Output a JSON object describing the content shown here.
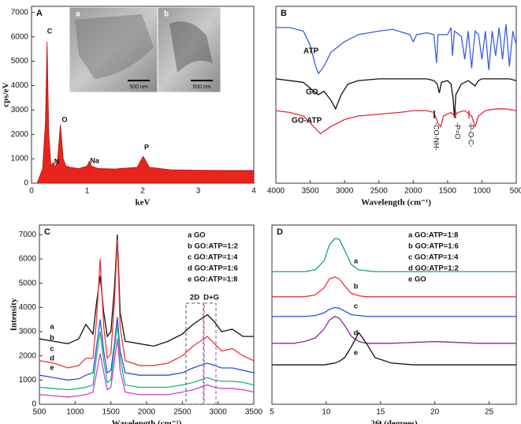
{
  "chart_data": [
    {
      "type": "area",
      "title": "A",
      "xlabel": "keV",
      "ylabel": "cps/eV",
      "color": "#e8251c",
      "x": [
        0,
        0.1,
        0.2,
        0.25,
        0.28,
        0.31,
        0.35,
        0.39,
        0.43,
        0.47,
        0.52,
        0.57,
        0.62,
        0.7,
        0.85,
        1.0,
        1.04,
        1.08,
        1.2,
        1.5,
        1.9,
        1.96,
        2.01,
        2.06,
        2.12,
        2.5,
        3,
        3.5,
        4
      ],
      "values": [
        0,
        0,
        600,
        2500,
        5800,
        2000,
        700,
        850,
        650,
        1000,
        2400,
        1000,
        700,
        650,
        600,
        700,
        900,
        700,
        600,
        580,
        650,
        900,
        1100,
        900,
        650,
        550,
        530,
        520,
        520
      ],
      "xlim": [
        0,
        4
      ],
      "xticks": [
        0,
        1,
        2,
        3,
        4
      ],
      "ylim": [
        0,
        7250
      ],
      "yticks": [
        0,
        1000,
        2000,
        3000,
        4000,
        5000,
        6000,
        7000
      ],
      "peak_labels": [
        "C",
        "N",
        "O",
        "Na",
        "P"
      ],
      "insets": [
        {
          "label": "a",
          "scale_bar": "500 nm"
        },
        {
          "label": "b",
          "scale_bar": "500 nm"
        }
      ]
    },
    {
      "type": "line",
      "title": "B",
      "xlabel": "Wavelength (cm⁻¹)",
      "xlim": [
        4000,
        500
      ],
      "xticks": [
        4000,
        3500,
        3000,
        2500,
        2000,
        1500,
        1000,
        500
      ],
      "ylim": [
        0,
        100
      ],
      "annotations": [
        "-CO-NH-",
        "-P=O",
        "-P-O-C-"
      ],
      "series": [
        {
          "name": "ATP",
          "color": "#3b5fe0",
          "x": [
            4000,
            3800,
            3600,
            3500,
            3420,
            3380,
            3300,
            3200,
            3000,
            2800,
            2500,
            2300,
            2050,
            2000,
            1950,
            1800,
            1700,
            1660,
            1640,
            1500,
            1450,
            1430,
            1400,
            1300,
            1250,
            1200,
            1150,
            1100,
            1050,
            1000,
            950,
            900,
            850,
            800,
            750,
            700,
            650,
            600,
            550,
            500
          ],
          "values": [
            88,
            88,
            86,
            78,
            66,
            62,
            66,
            74,
            80,
            84,
            86,
            87,
            84,
            80,
            84,
            85,
            84,
            68,
            84,
            84,
            88,
            72,
            86,
            83,
            70,
            86,
            65,
            86,
            84,
            70,
            86,
            64,
            86,
            72,
            88,
            70,
            90,
            66,
            86,
            78
          ]
        },
        {
          "name": "GO",
          "color": "#111111",
          "x": [
            4000,
            3800,
            3600,
            3450,
            3380,
            3300,
            3200,
            3130,
            3050,
            2950,
            2800,
            2500,
            2200,
            2000,
            1800,
            1700,
            1650,
            1620,
            1590,
            1500,
            1450,
            1420,
            1400,
            1380,
            1300,
            1200,
            1100,
            1050,
            1000,
            800,
            600,
            500
          ],
          "values": [
            59,
            58,
            57,
            52,
            50,
            52,
            47,
            42,
            50,
            56,
            58,
            59,
            59,
            59,
            59,
            58,
            56,
            51,
            57,
            58,
            56,
            48,
            37,
            50,
            56,
            58,
            55,
            58,
            59,
            59,
            59,
            58
          ]
        },
        {
          "name": "GO-ATP",
          "color": "#e8253a",
          "x": [
            4000,
            3800,
            3600,
            3450,
            3350,
            3200,
            3000,
            2800,
            2500,
            2200,
            2000,
            1800,
            1700,
            1640,
            1600,
            1560,
            1450,
            1400,
            1350,
            1250,
            1150,
            1100,
            1050,
            950,
            800,
            650,
            500
          ],
          "values": [
            41,
            40,
            38,
            32,
            28,
            32,
            36,
            38,
            39,
            40,
            41,
            41,
            40,
            34,
            32,
            38,
            40,
            38,
            40,
            41,
            38,
            32,
            38,
            41,
            42,
            42,
            41
          ]
        }
      ]
    },
    {
      "type": "line",
      "title": "C",
      "xlabel": "Wavelength (cm⁻¹)",
      "ylabel": "Intensity",
      "legend": "upper right",
      "x": [
        500,
        700,
        900,
        1050,
        1150,
        1250,
        1300,
        1350,
        1400,
        1450,
        1500,
        1550,
        1590,
        1630,
        1700,
        1900,
        2100,
        2300,
        2500,
        2650,
        2750,
        2850,
        2950,
        3050,
        3200,
        3350,
        3500
      ],
      "xlim": [
        500,
        3500
      ],
      "xticks": [
        500,
        1000,
        1500,
        2000,
        2500,
        3000,
        3500
      ],
      "ylim": [
        0,
        7400
      ],
      "yticks": [
        0,
        1000,
        2000,
        3000,
        4000,
        5000,
        6000,
        7000
      ],
      "annotations": [
        "2D",
        "D+G"
      ],
      "series": [
        {
          "name": "a GO",
          "tag": "a",
          "color": "#111111",
          "values": [
            2700,
            2600,
            2500,
            2700,
            3300,
            2900,
            4200,
            5300,
            3800,
            2800,
            3000,
            4800,
            7000,
            3800,
            2600,
            2500,
            2400,
            2600,
            2900,
            3300,
            3500,
            3700,
            3400,
            3000,
            3100,
            2800,
            2800
          ]
        },
        {
          "name": "b GO:ATP=1:2",
          "tag": "b",
          "color": "#f0333a",
          "values": [
            1800,
            1700,
            1500,
            1600,
            1900,
            1900,
            3500,
            6000,
            3200,
            1900,
            2100,
            4200,
            6800,
            3200,
            1800,
            1600,
            1600,
            1700,
            2000,
            2400,
            2600,
            2800,
            2500,
            2200,
            2300,
            2000,
            1800
          ]
        },
        {
          "name": "c GO:ATP=1:4",
          "tag": "c",
          "color": "#2f4fe0",
          "values": [
            1200,
            1100,
            1000,
            1050,
            1200,
            1300,
            2400,
            3500,
            2200,
            1300,
            1400,
            2500,
            3600,
            2200,
            1300,
            1200,
            1200,
            1200,
            1300,
            1500,
            1600,
            1700,
            1600,
            1500,
            1500,
            1400,
            1300
          ]
        },
        {
          "name": "d GO:ATP=1:6",
          "tag": "d",
          "color": "#1eb47a",
          "values": [
            700,
            650,
            600,
            650,
            700,
            800,
            2000,
            3000,
            1800,
            900,
            1000,
            2300,
            3300,
            1900,
            800,
            700,
            700,
            700,
            800,
            900,
            1000,
            1100,
            1000,
            950,
            950,
            900,
            800
          ]
        },
        {
          "name": "e GO:ATP=1:8",
          "tag": "e",
          "color": "#d040d0",
          "values": [
            400,
            350,
            300,
            350,
            400,
            500,
            1300,
            2100,
            1300,
            600,
            700,
            1800,
            2700,
            1400,
            500,
            400,
            400,
            400,
            500,
            600,
            700,
            800,
            700,
            650,
            650,
            600,
            500
          ]
        }
      ]
    },
    {
      "type": "line",
      "title": "D",
      "xlabel": "2Θ (degrees)",
      "legend": "upper right",
      "x": [
        5,
        7,
        8,
        9,
        9.8,
        10.3,
        10.8,
        11.2,
        11.7,
        12.3,
        13,
        13.7,
        14.5,
        16,
        18,
        20,
        22,
        24,
        26,
        27.5
      ],
      "xlim": [
        5,
        27.5
      ],
      "xticks": [
        5,
        10,
        15,
        20,
        25
      ],
      "ylim": [
        0,
        100
      ],
      "series": [
        {
          "name": "a GO:ATP=1:8",
          "tag": "a",
          "color": "#1a9e80",
          "values": [
            74,
            74,
            74,
            75,
            80,
            89,
            92.5,
            92,
            86,
            78,
            75,
            74.5,
            74,
            74,
            74,
            74,
            74,
            74,
            74,
            74
          ]
        },
        {
          "name": "b GO:ATP=1:6",
          "tag": "b",
          "color": "#f0333a",
          "values": [
            60,
            60,
            60,
            61,
            65,
            70,
            71,
            70,
            66,
            62,
            60.5,
            60,
            60,
            60,
            60,
            60,
            60,
            60,
            60,
            60
          ]
        },
        {
          "name": "c GO:ATP=1:4",
          "tag": "c",
          "color": "#2f4fe0",
          "values": [
            49,
            49,
            49,
            49.5,
            51,
            53,
            54,
            53.5,
            52,
            50,
            49.5,
            49,
            49,
            49,
            49,
            49,
            49,
            49,
            49,
            49
          ]
        },
        {
          "name": "d GO:ATP=1:2",
          "tag": "d",
          "color": "#8a2a9a",
          "values": [
            34,
            34,
            35,
            37,
            42,
            47,
            49,
            48,
            44,
            38,
            35,
            34,
            34,
            34,
            34.5,
            35,
            34.5,
            34,
            34,
            34
          ]
        },
        {
          "name": "e GO",
          "tag": "e",
          "color": "#111111",
          "values": [
            22,
            22,
            22,
            22,
            22,
            22.5,
            23,
            24,
            26,
            32,
            40,
            34,
            26,
            23,
            22,
            22,
            22,
            22,
            22,
            22
          ]
        }
      ]
    }
  ]
}
